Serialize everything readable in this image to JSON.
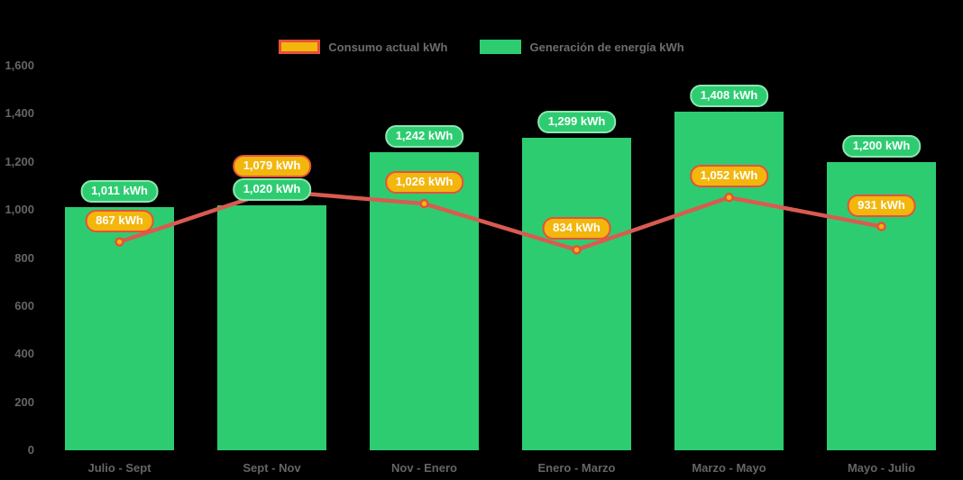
{
  "chart_data": {
    "type": "bar",
    "combo": "bar+line",
    "categories": [
      "Julio - Sept",
      "Sept - Nov",
      "Nov - Enero",
      "Enero - Marzo",
      "Marzo - Mayo",
      "Mayo - Julio"
    ],
    "series": [
      {
        "name": "Consumo actual kWh",
        "type": "line",
        "values": [
          867,
          1079,
          1026,
          834,
          1052,
          931
        ],
        "line_color": "#d95b50",
        "marker_fill": "#f2b60d",
        "marker_stroke": "#e8503a",
        "label_style": "gold"
      },
      {
        "name": "Generación de energía kWh",
        "type": "bar",
        "values": [
          1011,
          1020,
          1242,
          1299,
          1408,
          1200
        ],
        "bar_color": "#2ecc71",
        "label_style": "green"
      }
    ],
    "value_suffix": " kWh",
    "data_labels": {
      "bar": [
        "1,011 kWh",
        "1,020 kWh",
        "1,242 kWh",
        "1,299 kWh",
        "1,408 kWh",
        "1,200 kWh"
      ],
      "line": [
        "867 kWh",
        "1,079 kWh",
        "1,026 kWh",
        "834 kWh",
        "1,052 kWh",
        "931 kWh"
      ]
    },
    "title": "",
    "xlabel": "",
    "ylabel": "",
    "ylim": [
      0,
      1600
    ],
    "yticks": [
      0,
      200,
      400,
      600,
      800,
      1000,
      1200,
      1400,
      1600
    ],
    "ytick_labels": [
      "0",
      "200",
      "400",
      "600",
      "800",
      "1,000",
      "1,200",
      "1,400",
      "1,600"
    ],
    "grid": false,
    "legend_position": "top-center",
    "background_color": "#000000",
    "axis_text_color": "#656565"
  }
}
